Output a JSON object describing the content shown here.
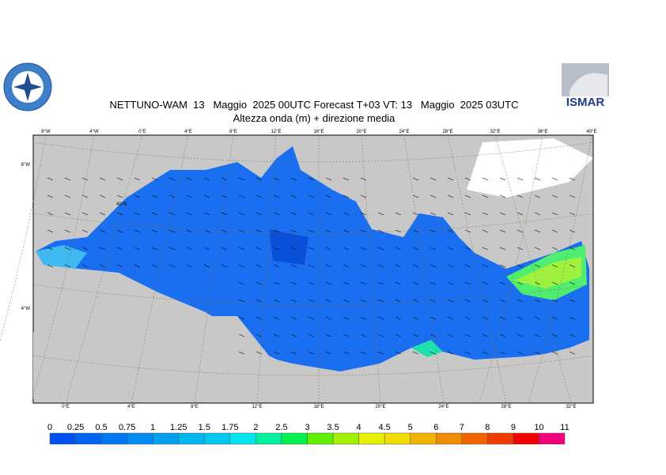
{
  "header": {
    "title": "NETTUNO-WAM  13   Maggio  2025 00UTC Forecast T+03 VT: 13   Maggio  2025 03UTC",
    "subtitle": "Altezza onda (m) + direzione media",
    "logo": "ISMAR"
  },
  "graticule": {
    "top": [
      "8°W",
      "4°W",
      "0°E",
      "4°E",
      "8°E",
      "12°E",
      "16°E",
      "20°E",
      "24°E",
      "28°E",
      "32°E",
      "36°E",
      "40°E"
    ],
    "bottom": [
      "0°E",
      "4°E",
      "8°E",
      "12°E",
      "16°E",
      "20°E",
      "24°E",
      "28°E",
      "32°E"
    ],
    "left": [
      "8°W",
      "4°W"
    ],
    "inner": [
      "40°N"
    ]
  },
  "colorbar": {
    "labels": [
      "0",
      "0.25",
      "0.5",
      "0.75",
      "1",
      "1.25",
      "1.5",
      "1.75",
      "2",
      "2.5",
      "3",
      "3.5",
      "4",
      "4.5",
      "5",
      "6",
      "7",
      "8",
      "9",
      "10",
      "11"
    ],
    "colors": [
      "#0050f0",
      "#0064f0",
      "#0078f0",
      "#008cf0",
      "#00a0f0",
      "#00b4f0",
      "#00c8f0",
      "#00e6f0",
      "#00f0a0",
      "#00f050",
      "#60f000",
      "#a0f000",
      "#e6f000",
      "#f0dc00",
      "#f0b400",
      "#f08c00",
      "#f06400",
      "#f03c00",
      "#f00000",
      "#f0007a"
    ]
  }
}
